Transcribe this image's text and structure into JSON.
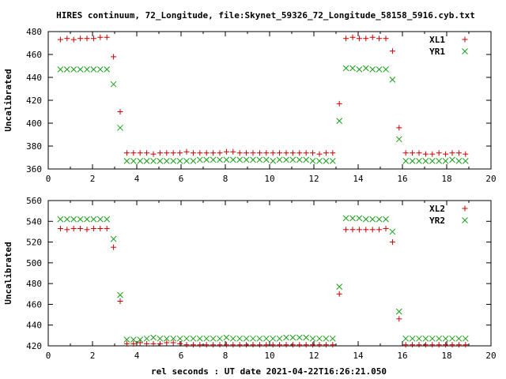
{
  "title": "HIRES continuum, 72_Longitude, file:Skynet_59326_72_Longitude_58158_5916.cyb.txt",
  "xlabel": "rel seconds : UT date 2021-04-22T16:26:21.050",
  "colors": {
    "series1": "#cc0000",
    "series2": "#1a9e1a"
  },
  "chart_data": [
    {
      "type": "scatter",
      "ylabel": "Uncalibrated",
      "xlim": [
        0,
        20
      ],
      "ylim": [
        360,
        480
      ],
      "xticks": [
        "0",
        "2",
        "4",
        "6",
        "8",
        "10",
        "12",
        "14",
        "16",
        "18",
        "20"
      ],
      "yticks": [
        "360",
        "380",
        "400",
        "420",
        "440",
        "460",
        "480"
      ],
      "legend_position": "top-right",
      "x": [
        0.55,
        0.85,
        1.15,
        1.45,
        1.75,
        2.05,
        2.35,
        2.65,
        2.95,
        3.25,
        3.55,
        3.85,
        4.15,
        4.45,
        4.75,
        5.05,
        5.35,
        5.65,
        5.95,
        6.25,
        6.55,
        6.85,
        7.15,
        7.45,
        7.75,
        8.05,
        8.35,
        8.65,
        8.95,
        9.25,
        9.55,
        9.85,
        10.15,
        10.45,
        10.75,
        11.05,
        11.35,
        11.65,
        11.95,
        12.25,
        12.55,
        12.85,
        13.15,
        13.45,
        13.75,
        14.05,
        14.35,
        14.65,
        14.95,
        15.25,
        15.55,
        15.85,
        16.15,
        16.45,
        16.75,
        17.05,
        17.35,
        17.65,
        17.95,
        18.25,
        18.55,
        18.85
      ],
      "series": [
        {
          "name": "XL1",
          "marker": "plus",
          "values": [
            473,
            474,
            473,
            474,
            474,
            474,
            475,
            475,
            458,
            410,
            374,
            374,
            374,
            374,
            373,
            374,
            374,
            374,
            374,
            375,
            374,
            374,
            374,
            374,
            374,
            375,
            375,
            374,
            374,
            374,
            374,
            374,
            374,
            374,
            374,
            374,
            374,
            374,
            374,
            373,
            374,
            374,
            417,
            474,
            475,
            474,
            474,
            475,
            474,
            474,
            463,
            396,
            374,
            374,
            374,
            373,
            373,
            374,
            373,
            374,
            374,
            373
          ]
        },
        {
          "name": "YR1",
          "marker": "cross",
          "values": [
            447,
            447,
            447,
            447,
            447,
            447,
            447,
            447,
            434,
            396,
            367,
            367,
            367,
            367,
            367,
            367,
            367,
            367,
            367,
            367,
            367,
            368,
            368,
            368,
            368,
            368,
            368,
            368,
            368,
            368,
            368,
            368,
            367,
            368,
            368,
            368,
            368,
            368,
            367,
            367,
            367,
            367,
            402,
            448,
            448,
            447,
            448,
            447,
            447,
            447,
            438,
            386,
            367,
            367,
            367,
            367,
            367,
            367,
            367,
            368,
            367,
            367
          ]
        }
      ]
    },
    {
      "type": "scatter",
      "ylabel": "Uncalibrated",
      "xlim": [
        0,
        20
      ],
      "ylim": [
        420,
        560
      ],
      "xticks": [
        "0",
        "2",
        "4",
        "6",
        "8",
        "10",
        "12",
        "14",
        "16",
        "18",
        "20"
      ],
      "yticks": [
        "420",
        "440",
        "460",
        "480",
        "500",
        "520",
        "540",
        "560"
      ],
      "legend_position": "top-right",
      "x": [
        0.55,
        0.85,
        1.15,
        1.45,
        1.75,
        2.05,
        2.35,
        2.65,
        2.95,
        3.25,
        3.55,
        3.85,
        4.15,
        4.45,
        4.75,
        5.05,
        5.35,
        5.65,
        5.95,
        6.25,
        6.55,
        6.85,
        7.15,
        7.45,
        7.75,
        8.05,
        8.35,
        8.65,
        8.95,
        9.25,
        9.55,
        9.85,
        10.15,
        10.45,
        10.75,
        11.05,
        11.35,
        11.65,
        11.95,
        12.25,
        12.55,
        12.85,
        13.15,
        13.45,
        13.75,
        14.05,
        14.35,
        14.65,
        14.95,
        15.25,
        15.55,
        15.85,
        16.15,
        16.45,
        16.75,
        17.05,
        17.35,
        17.65,
        17.95,
        18.25,
        18.55,
        18.85
      ],
      "series": [
        {
          "name": "XL2",
          "marker": "plus",
          "values": [
            533,
            532,
            533,
            533,
            532,
            533,
            533,
            533,
            515,
            463,
            422,
            422,
            423,
            422,
            422,
            422,
            423,
            423,
            422,
            421,
            421,
            421,
            421,
            421,
            421,
            421,
            421,
            421,
            421,
            421,
            421,
            421,
            421,
            421,
            421,
            421,
            421,
            421,
            421,
            421,
            421,
            421,
            470,
            532,
            532,
            532,
            532,
            532,
            532,
            533,
            520,
            446,
            421,
            421,
            421,
            421,
            421,
            421,
            421,
            421,
            421,
            421
          ]
        },
        {
          "name": "YR2",
          "marker": "cross",
          "values": [
            542,
            542,
            542,
            542,
            542,
            542,
            542,
            542,
            523,
            469,
            426,
            426,
            426,
            427,
            428,
            427,
            427,
            427,
            427,
            427,
            427,
            427,
            427,
            427,
            427,
            428,
            427,
            427,
            427,
            427,
            427,
            427,
            427,
            427,
            428,
            428,
            428,
            428,
            427,
            427,
            427,
            427,
            477,
            543,
            543,
            543,
            542,
            542,
            542,
            542,
            530,
            453,
            427,
            427,
            427,
            427,
            427,
            427,
            427,
            427,
            427,
            427
          ]
        }
      ]
    }
  ]
}
